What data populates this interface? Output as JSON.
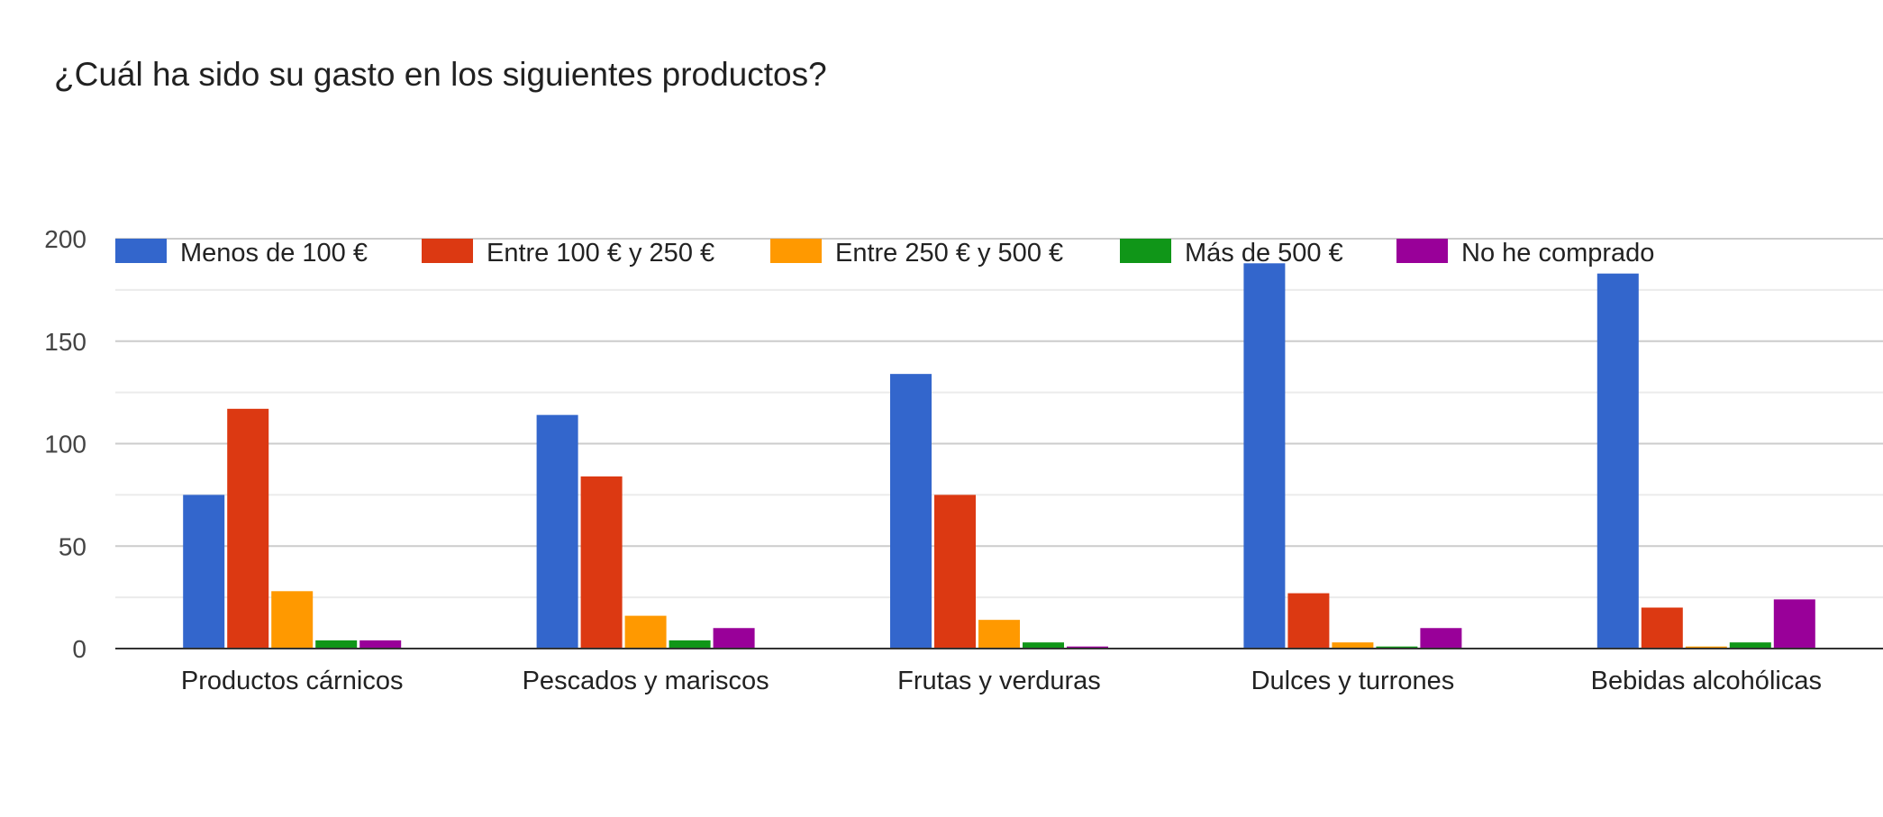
{
  "title": "¿Cuál ha sido su gasto en los siguientes productos?",
  "chart_data": {
    "type": "bar",
    "title": "¿Cuál ha sido su gasto en los siguientes productos?",
    "categories": [
      "Productos cárnicos",
      "Pescados y mariscos",
      "Frutas y verduras",
      "Dulces y turrones",
      "Bebidas alcohólicas"
    ],
    "series": [
      {
        "name": "Menos de 100 €",
        "color": "#3366cc",
        "values": [
          75,
          114,
          134,
          188,
          183
        ]
      },
      {
        "name": "Entre 100 € y 250 €",
        "color": "#dc3912",
        "values": [
          117,
          84,
          75,
          27,
          20
        ]
      },
      {
        "name": "Entre 250 € y 500 €",
        "color": "#ff9900",
        "values": [
          28,
          16,
          14,
          3,
          1
        ]
      },
      {
        "name": "Más de 500 €",
        "color": "#109618",
        "values": [
          4,
          4,
          3,
          1,
          3
        ]
      },
      {
        "name": "No he comprado",
        "color": "#990099",
        "values": [
          4,
          10,
          1,
          10,
          24
        ]
      }
    ],
    "ylim": [
      0,
      200
    ],
    "yticks": [
      0,
      50,
      100,
      150,
      200
    ],
    "grid": true,
    "legend_position": "top"
  }
}
